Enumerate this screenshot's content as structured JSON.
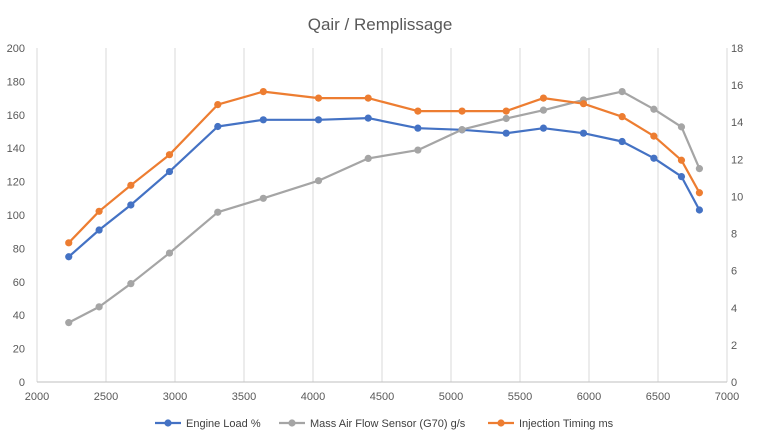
{
  "chart_data": {
    "type": "line",
    "title": "Qair / Remplissage",
    "x_ticks": [
      "2000",
      "2500",
      "3000",
      "3500",
      "4000",
      "4500",
      "5000",
      "5500",
      "6000",
      "6500",
      "7000"
    ],
    "y_left_ticks": [
      "0",
      "20",
      "40",
      "60",
      "80",
      "100",
      "120",
      "140",
      "160",
      "180",
      "200"
    ],
    "y_right_ticks": [
      "0",
      "2",
      "4",
      "6",
      "8",
      "10",
      "12",
      "14",
      "16",
      "18"
    ],
    "xlim": [
      2000,
      7000
    ],
    "ylim_left": [
      0,
      200
    ],
    "ylim_right": [
      0,
      18
    ],
    "grid": "vertical",
    "legend_position": "bottom",
    "series": [
      {
        "name": "Engine Load  %",
        "axis": "left",
        "color": "#4472C4",
        "x": [
          2230,
          2450,
          2680,
          2960,
          3310,
          3640,
          4040,
          4400,
          4760,
          5080,
          5400,
          5670,
          5960,
          6240,
          6470,
          6670,
          6800
        ],
        "values": [
          75,
          91,
          106,
          126,
          153,
          157,
          157,
          158,
          152,
          151,
          149,
          152,
          149,
          144,
          134,
          123,
          103
        ]
      },
      {
        "name": "Mass Air Flow Sensor (G70)  g/s",
        "axis": "right",
        "color": "#A5A5A5",
        "x": [
          2230,
          2450,
          2680,
          2960,
          3310,
          3640,
          4040,
          4400,
          4760,
          5080,
          5400,
          5670,
          5960,
          6240,
          6470,
          6670,
          6800
        ],
        "values": [
          3.2,
          4.05,
          5.3,
          6.95,
          9.15,
          9.9,
          10.85,
          12.05,
          12.5,
          13.6,
          14.2,
          14.65,
          15.2,
          15.65,
          14.7,
          13.75,
          11.5
        ]
      },
      {
        "name": "Injection Timing  ms",
        "axis": "right",
        "color": "#ED7D31",
        "x": [
          2230,
          2450,
          2680,
          2960,
          3310,
          3640,
          4040,
          4400,
          4760,
          5080,
          5400,
          5670,
          5960,
          6240,
          6470,
          6670,
          6800
        ],
        "values": [
          7.5,
          9.2,
          10.6,
          12.25,
          14.95,
          15.65,
          15.3,
          15.3,
          14.6,
          14.6,
          14.6,
          15.3,
          15.0,
          14.3,
          13.25,
          11.95,
          10.2
        ]
      }
    ]
  }
}
